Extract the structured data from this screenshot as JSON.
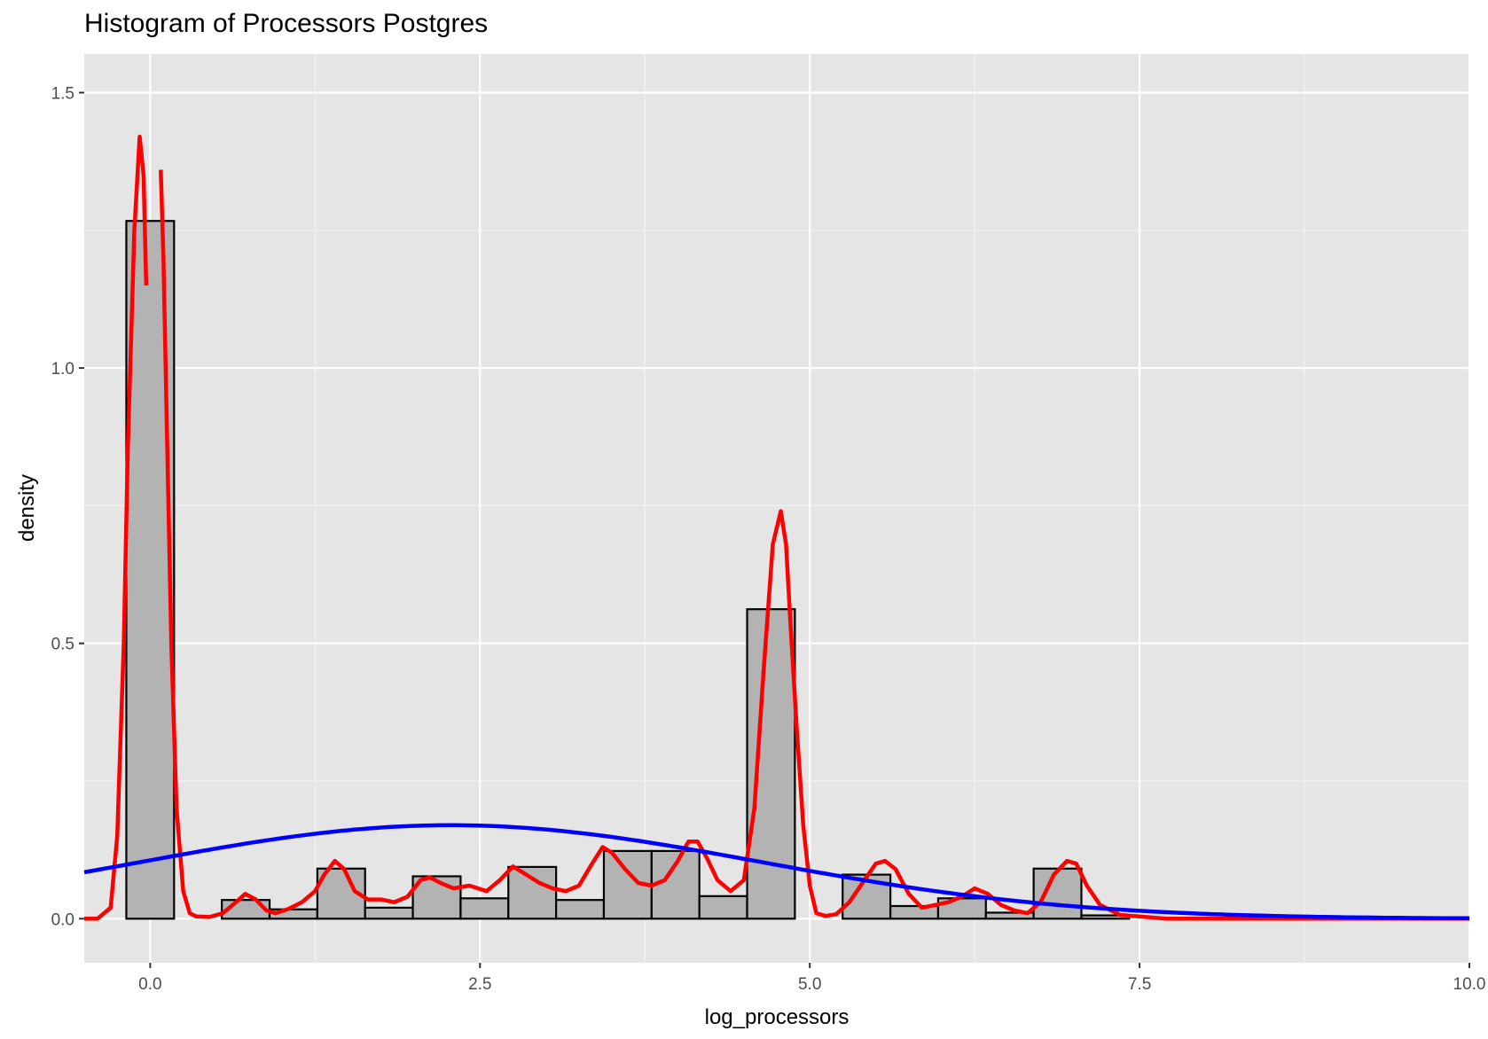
{
  "chart_data": {
    "type": "bar",
    "title": "Histogram of Processors Postgres",
    "xlabel": "log_processors",
    "ylabel": "density",
    "xlim": [
      -0.5,
      10.0
    ],
    "ylim": [
      -0.08,
      1.57
    ],
    "x_ticks": [
      0.0,
      2.5,
      5.0,
      7.5,
      10.0
    ],
    "x_tick_labels": [
      "0.0",
      "2.5",
      "5.0",
      "7.5",
      "10.0"
    ],
    "y_ticks": [
      0.0,
      0.5,
      1.0,
      1.5
    ],
    "y_tick_labels": [
      "0.0",
      "0.5",
      "1.0",
      "1.5"
    ],
    "grid": true,
    "bin_width": 0.362,
    "histogram": {
      "fill": "#b3b3b3",
      "outline": "#000000",
      "bin_starts": [
        -0.181,
        0.181,
        0.543,
        0.905,
        1.267,
        1.629,
        1.991,
        2.353,
        2.715,
        3.077,
        3.439,
        3.801,
        4.163,
        4.525,
        4.887,
        5.249,
        5.611,
        5.973,
        6.335,
        6.697,
        7.059
      ],
      "densities": [
        1.267,
        0.0,
        0.034,
        0.017,
        0.091,
        0.02,
        0.077,
        0.037,
        0.094,
        0.034,
        0.123,
        0.123,
        0.041,
        0.562,
        0.0,
        0.08,
        0.023,
        0.037,
        0.011,
        0.091,
        0.006
      ]
    },
    "series": [
      {
        "type": "density-curve",
        "color": "#ff0000",
        "x": [
          -0.5,
          -0.4,
          -0.3,
          -0.25,
          -0.2,
          -0.17,
          -0.12,
          -0.08,
          -0.05,
          -0.03,
          null,
          0.08,
          0.1,
          0.13,
          0.16,
          0.2,
          0.25,
          0.3,
          0.35,
          0.45,
          0.55,
          0.65,
          0.72,
          0.8,
          0.88,
          0.95,
          1.05,
          1.15,
          1.25,
          1.32,
          1.4,
          1.47,
          1.55,
          1.65,
          1.75,
          1.85,
          1.95,
          2.05,
          2.12,
          2.2,
          2.3,
          2.42,
          2.55,
          2.65,
          2.75,
          2.85,
          2.95,
          3.05,
          3.15,
          3.25,
          3.35,
          3.43,
          3.5,
          3.6,
          3.7,
          3.8,
          3.9,
          4.0,
          4.08,
          4.15,
          4.22,
          4.3,
          4.4,
          4.5,
          4.58,
          4.65,
          4.72,
          4.78,
          4.82,
          4.85,
          4.9,
          4.95,
          5.0,
          5.05,
          5.12,
          5.2,
          5.3,
          5.4,
          5.5,
          5.57,
          5.65,
          5.75,
          5.85,
          5.95,
          6.05,
          6.15,
          6.25,
          6.35,
          6.45,
          6.55,
          6.65,
          6.75,
          6.85,
          6.95,
          7.02,
          7.1,
          7.2,
          7.35,
          7.5,
          7.7,
          8.0,
          8.5,
          9.0,
          10.0
        ],
        "y": [
          0.0,
          0.0,
          0.02,
          0.15,
          0.5,
          0.85,
          1.25,
          1.42,
          1.35,
          1.15,
          null,
          1.36,
          1.2,
          0.85,
          0.5,
          0.2,
          0.05,
          0.01,
          0.004,
          0.003,
          0.01,
          0.03,
          0.045,
          0.035,
          0.015,
          0.01,
          0.018,
          0.03,
          0.05,
          0.08,
          0.105,
          0.09,
          0.05,
          0.035,
          0.035,
          0.03,
          0.04,
          0.07,
          0.075,
          0.065,
          0.055,
          0.06,
          0.05,
          0.07,
          0.095,
          0.08,
          0.065,
          0.055,
          0.05,
          0.06,
          0.1,
          0.13,
          0.12,
          0.09,
          0.065,
          0.06,
          0.07,
          0.105,
          0.14,
          0.14,
          0.11,
          0.07,
          0.05,
          0.07,
          0.2,
          0.45,
          0.68,
          0.74,
          0.68,
          0.55,
          0.35,
          0.17,
          0.06,
          0.01,
          0.005,
          0.008,
          0.03,
          0.065,
          0.1,
          0.105,
          0.09,
          0.045,
          0.02,
          0.025,
          0.03,
          0.04,
          0.055,
          0.045,
          0.025,
          0.015,
          0.01,
          0.03,
          0.08,
          0.105,
          0.1,
          0.06,
          0.025,
          0.007,
          0.004,
          0.0,
          0.0,
          0.0,
          0.0,
          0.0
        ]
      },
      {
        "type": "normal-curve",
        "color": "#0000ff",
        "mean": 2.28,
        "sd": 2.35,
        "x_range": [
          -0.5,
          10.0
        ]
      }
    ]
  }
}
